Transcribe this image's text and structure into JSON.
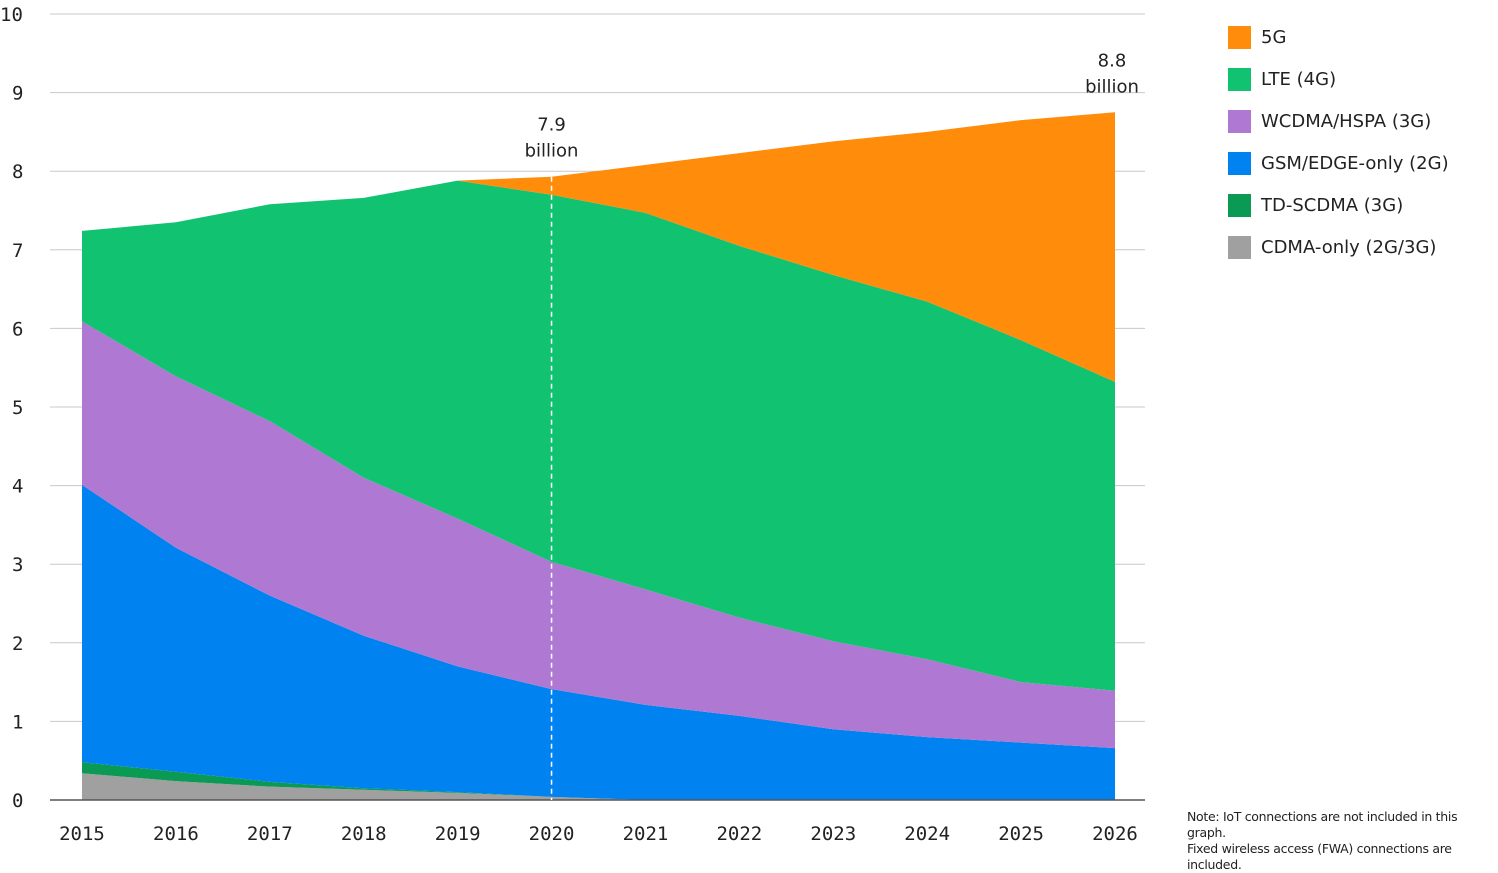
{
  "chart_data": {
    "type": "area",
    "stacked": true,
    "x": [
      2015,
      2016,
      2017,
      2018,
      2019,
      2020,
      2021,
      2022,
      2023,
      2024,
      2025,
      2026
    ],
    "ylim": [
      0,
      10
    ],
    "yticks": [
      0,
      1,
      2,
      3,
      4,
      5,
      6,
      7,
      8,
      9,
      10
    ],
    "grid": true,
    "legend_placement": "right",
    "series": [
      {
        "name": "CDMA-only (2G/3G)",
        "color": "#a0a0a0",
        "values": [
          0.34,
          0.24,
          0.17,
          0.13,
          0.09,
          0.04,
          0,
          0,
          0,
          0,
          0,
          0
        ]
      },
      {
        "name": "TD-SCDMA (3G)",
        "color": "#0a9a54",
        "values": [
          0.14,
          0.12,
          0.06,
          0.02,
          0.01,
          0,
          0,
          0,
          0,
          0,
          0,
          0
        ]
      },
      {
        "name": "GSM/EDGE-only (2G)",
        "color": "#0082f0",
        "values": [
          3.53,
          2.85,
          2.37,
          1.94,
          1.6,
          1.37,
          1.21,
          1.07,
          0.9,
          0.8,
          0.73,
          0.66
        ]
      },
      {
        "name": "WCDMA/HSPA (3G)",
        "color": "#af78d2",
        "values": [
          2.08,
          2.18,
          2.22,
          2.01,
          1.88,
          1.62,
          1.47,
          1.25,
          1.12,
          0.99,
          0.77,
          0.73
        ]
      },
      {
        "name": "LTE (4G)",
        "color": "#11c370",
        "values": [
          1.15,
          1.96,
          2.76,
          3.56,
          4.3,
          4.67,
          4.79,
          4.73,
          4.66,
          4.55,
          4.35,
          3.93
        ]
      },
      {
        "name": "5G",
        "color": "#ff8c0a",
        "values": [
          0,
          0,
          0,
          0,
          0,
          0.23,
          0.61,
          1.18,
          1.7,
          2.16,
          2.8,
          3.43
        ]
      }
    ],
    "legend_order": [
      "5G",
      "LTE (4G)",
      "WCDMA/HSPA (3G)",
      "GSM/EDGE-only (2G)",
      "TD-SCDMA (3G)",
      "CDMA-only (2G/3G)"
    ],
    "annotations": [
      {
        "x": 2020,
        "value_line1": "7.9",
        "value_line2": "billion",
        "marker": "dashed-vertical-line"
      },
      {
        "x": 2026,
        "value_line1": "8.8",
        "value_line2": "billion"
      }
    ]
  },
  "note": {
    "line1": "Note: IoT connections are not included in this graph.",
    "line2": "Fixed wireless access (FWA) connections are included."
  }
}
